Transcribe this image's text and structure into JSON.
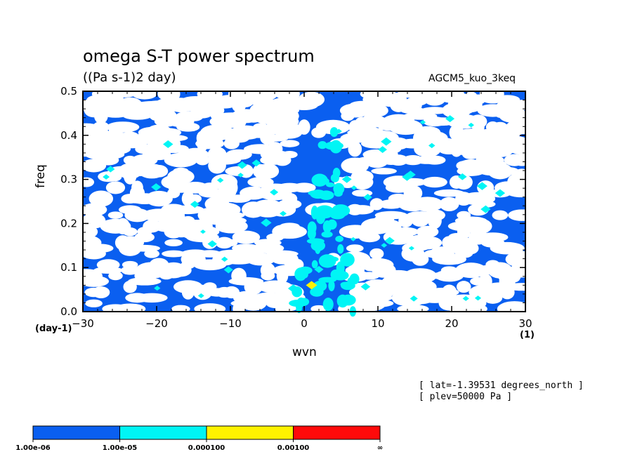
{
  "chart_data": {
    "type": "heatmap",
    "title": "omega S-T power spectrum",
    "subtitle": "((Pa s-1)2 day)",
    "run_name": "AGCM5_kuo_3keq",
    "xlabel": "wvn",
    "ylabel": "freq",
    "x_unit": "(1)",
    "y_unit": "(day-1)",
    "xlim": [
      -30,
      30
    ],
    "ylim": [
      0.0,
      0.5
    ],
    "x_ticks": [
      "−30",
      "−20",
      "−10",
      "0",
      "10",
      "20",
      "30"
    ],
    "y_ticks": [
      "0.0",
      "0.1",
      "0.2",
      "0.3",
      "0.4",
      "0.5"
    ],
    "x_tick_values": [
      -30,
      -20,
      -10,
      0,
      10,
      20,
      30
    ],
    "y_tick_values": [
      0.0,
      0.1,
      0.2,
      0.3,
      0.4,
      0.5
    ],
    "annotations": [
      "[ lat=-1.39531 degrees_north ]",
      "[ plev=50000 Pa ]"
    ],
    "colorbar": {
      "labels": [
        "1.00e-06",
        "1.00e-05",
        "0.000100",
        "0.00100",
        "∞"
      ],
      "colors": [
        "#0a5ff0",
        "#00f5f5",
        "#fff200",
        "#ff0a0a"
      ]
    },
    "features": {
      "background_color": "#0a5ff0",
      "low_power_color": "#ffffff",
      "cyan_ridge": {
        "wvn_range": [
          -1,
          6
        ],
        "freq_range": [
          0.0,
          0.45
        ]
      },
      "yellow_peak": {
        "wvn": 1,
        "freq": 0.06
      }
    },
    "grid": false
  }
}
